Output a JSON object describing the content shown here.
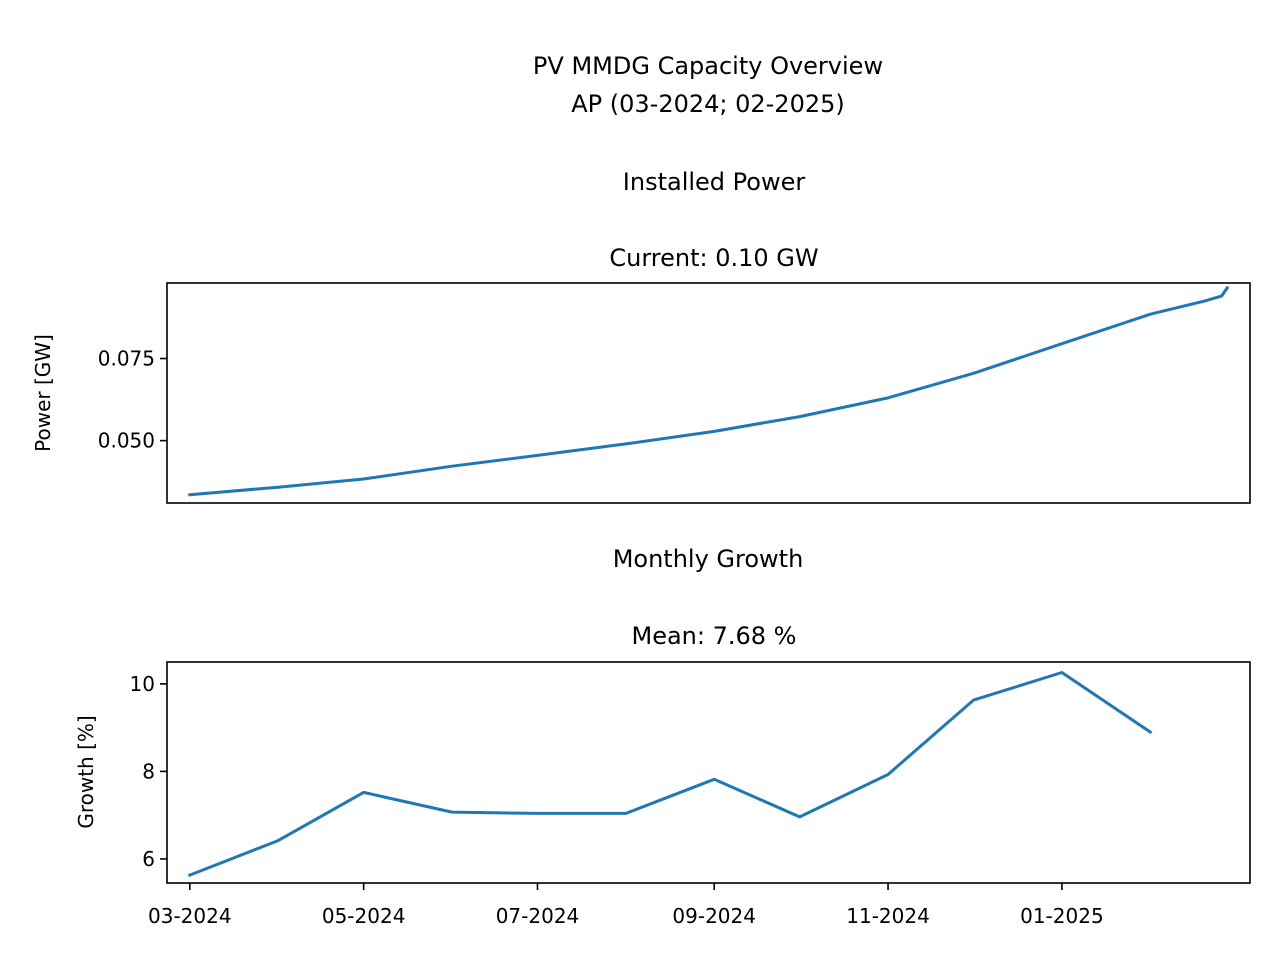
{
  "figure": {
    "suptitle_line1": "PV MMDG Capacity Overview",
    "suptitle_line2": "AP (03-2024; 02-2025)"
  },
  "chart_data": [
    {
      "type": "line",
      "title_line1": "Installed Power",
      "title_line2": "Current: 0.10 GW",
      "xlabel": "",
      "ylabel": "Power [GW]",
      "ylim": [
        0.031,
        0.098
      ],
      "yticks": [
        0.05,
        0.075
      ],
      "ytick_labels": [
        "0.050",
        "0.075"
      ],
      "xlim": [
        "2024-02-22",
        "2025-03-08"
      ],
      "show_xticks": false,
      "grid": false,
      "color": "#1f77b4",
      "series": [
        {
          "x": [
            "2024-03-01",
            "2024-04-01",
            "2024-05-01",
            "2024-06-01",
            "2024-07-01",
            "2024-08-01",
            "2024-09-01",
            "2024-10-01",
            "2024-11-01",
            "2024-12-01",
            "2025-01-01",
            "2025-02-01",
            "2025-02-20",
            "2025-02-26",
            "2025-02-28"
          ],
          "y": [
            0.0335,
            0.0358,
            0.0383,
            0.0422,
            0.0455,
            0.049,
            0.0528,
            0.0573,
            0.063,
            0.0705,
            0.0795,
            0.0885,
            0.0925,
            0.094,
            0.0965
          ]
        }
      ]
    },
    {
      "type": "line",
      "title_line1": "Monthly Growth",
      "title_line2": "Mean: 7.68 %",
      "xlabel": "",
      "ylabel": "Growth [%]",
      "ylim": [
        5.45,
        10.5
      ],
      "yticks": [
        6,
        8,
        10
      ],
      "ytick_labels": [
        "6",
        "8",
        "10"
      ],
      "xlim": [
        "2024-02-22",
        "2025-03-08"
      ],
      "xticks": [
        "2024-03-01",
        "2024-05-01",
        "2024-07-01",
        "2024-09-01",
        "2024-11-01",
        "2025-01-01"
      ],
      "xtick_labels": [
        "03-2024",
        "05-2024",
        "07-2024",
        "09-2024",
        "11-2024",
        "01-2025"
      ],
      "grid": false,
      "color": "#1f77b4",
      "series": [
        {
          "x": [
            "2024-03-01",
            "2024-04-01",
            "2024-05-01",
            "2024-06-01",
            "2024-07-01",
            "2024-08-01",
            "2024-09-01",
            "2024-10-01",
            "2024-11-01",
            "2024-12-01",
            "2025-01-01",
            "2025-02-01"
          ],
          "y": [
            5.63,
            6.42,
            7.52,
            7.07,
            7.04,
            7.04,
            7.82,
            6.96,
            7.93,
            9.63,
            10.26,
            8.9
          ]
        }
      ]
    }
  ]
}
